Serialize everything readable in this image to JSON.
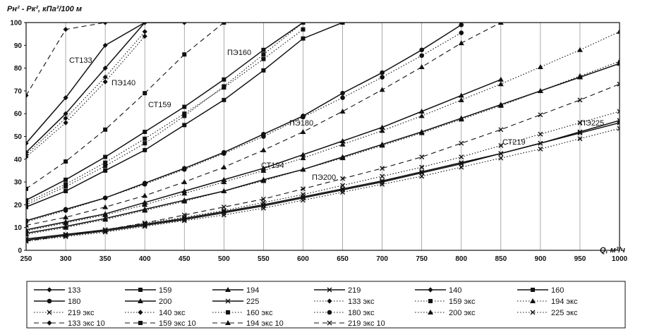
{
  "chart_data": {
    "type": "line",
    "title": "",
    "ylabel": "Рн² - Рк², кПа²/100 м",
    "xlabel": "Q, м³/ч",
    "xlim": [
      250,
      1000
    ],
    "ylim": [
      0,
      100
    ],
    "x_ticks": [
      250,
      300,
      350,
      400,
      450,
      500,
      550,
      600,
      650,
      700,
      750,
      800,
      850,
      900,
      950,
      1000
    ],
    "y_ticks": [
      0,
      10,
      20,
      30,
      40,
      50,
      60,
      70,
      80,
      90,
      100
    ],
    "grid": "vertical",
    "legend_position": "bottom",
    "annotations": [
      "СТ133",
      "ПЭ140",
      "СТ159",
      "ПЭ160",
      "ПЭ180",
      "СТ194",
      "ПЭ200",
      "СТ219",
      "ПЭ225"
    ],
    "series": [
      {
        "name": "133",
        "style": "solid",
        "marker": "diamond",
        "x": [
          250,
          300,
          350,
          400
        ],
        "y": [
          47,
          67,
          90,
          100
        ]
      },
      {
        "name": "159",
        "style": "solid",
        "marker": "square",
        "x": [
          250,
          300,
          350,
          400,
          450,
          500,
          550,
          600
        ],
        "y": [
          22,
          31,
          41,
          52,
          63,
          75,
          88,
          100
        ]
      },
      {
        "name": "194",
        "style": "solid",
        "marker": "triangle",
        "x": [
          250,
          300,
          350,
          400,
          450,
          500,
          550,
          600,
          650,
          700,
          750,
          800,
          850
        ],
        "y": [
          9,
          12.5,
          16,
          21,
          26,
          31,
          36,
          42,
          48,
          54,
          61,
          68,
          75
        ]
      },
      {
        "name": "219",
        "style": "solid",
        "marker": "x",
        "x": [
          250,
          300,
          350,
          400,
          450,
          500,
          550,
          600,
          650,
          700,
          750,
          800,
          850,
          900,
          950,
          1000
        ],
        "y": [
          4.5,
          6.5,
          8.5,
          11,
          13.5,
          16.5,
          19.5,
          23,
          26.5,
          30,
          34,
          38,
          42.5,
          47,
          52,
          57
        ]
      },
      {
        "name": "140",
        "style": "solid",
        "marker": "diamond",
        "x": [
          250,
          300,
          350,
          400,
          450
        ],
        "y": [
          43,
          60,
          80,
          100,
          100
        ]
      },
      {
        "name": "160",
        "style": "solid",
        "marker": "square",
        "x": [
          250,
          300,
          350,
          400,
          450,
          500,
          550,
          600,
          650
        ],
        "y": [
          19,
          26,
          35,
          44,
          55,
          66,
          79,
          93,
          100
        ]
      },
      {
        "name": "180",
        "style": "solid",
        "marker": "circle",
        "x": [
          250,
          300,
          350,
          400,
          450,
          500,
          550,
          600,
          650,
          700,
          750,
          800
        ],
        "y": [
          13,
          18,
          23,
          29.5,
          36,
          43,
          51,
          59,
          69,
          78,
          88,
          99
        ]
      },
      {
        "name": "200",
        "style": "solid",
        "marker": "triangle",
        "x": [
          250,
          300,
          350,
          400,
          450,
          500,
          550,
          600,
          650,
          700,
          750,
          800,
          850,
          900,
          950,
          1000
        ],
        "y": [
          7.5,
          10.5,
          14,
          18,
          22,
          26,
          31,
          35.5,
          41,
          46.5,
          52,
          58,
          64,
          70,
          76,
          82
        ]
      },
      {
        "name": "225",
        "style": "solid",
        "marker": "x",
        "x": [
          250,
          300,
          350,
          400,
          450,
          500,
          550,
          600,
          650,
          700,
          750,
          800,
          850,
          900,
          950,
          1000
        ],
        "y": [
          5,
          7,
          9,
          11.5,
          14,
          17,
          20,
          23.5,
          27,
          30.5,
          34.5,
          38.5,
          42.5,
          47,
          51.5,
          56
        ]
      },
      {
        "name": "133 экс",
        "style": "dotted",
        "marker": "diamond",
        "x": [
          250,
          300,
          350,
          400
        ],
        "y": [
          42,
          58,
          76,
          96
        ]
      },
      {
        "name": "159 экс",
        "style": "dotted",
        "marker": "square",
        "x": [
          250,
          300,
          350,
          400,
          450,
          500,
          550,
          600
        ],
        "y": [
          21,
          29,
          38.5,
          49,
          60,
          71.5,
          84,
          97
        ]
      },
      {
        "name": "194 экс",
        "style": "dotted",
        "marker": "triangle",
        "x": [
          250,
          300,
          350,
          400,
          450,
          500,
          550,
          600,
          650,
          700,
          750,
          800,
          850,
          900,
          950,
          1000
        ],
        "y": [
          8.5,
          12,
          15.5,
          20,
          25,
          30,
          35,
          40.5,
          46.5,
          52.5,
          59,
          66,
          73,
          80.5,
          88,
          96
        ]
      },
      {
        "name": "219 экс",
        "style": "dotted",
        "marker": "x",
        "x": [
          250,
          300,
          350,
          400,
          450,
          500,
          550,
          600,
          650,
          700,
          750,
          800,
          850,
          900,
          950,
          1000
        ],
        "y": [
          5,
          7,
          9,
          12,
          14.5,
          17.5,
          21,
          24.5,
          28.5,
          32.5,
          36.5,
          41,
          46,
          51,
          56,
          61
        ]
      },
      {
        "name": "140 экс",
        "style": "dotted",
        "marker": "diamond",
        "x": [
          250,
          300,
          350,
          400
        ],
        "y": [
          41,
          56,
          74,
          94
        ]
      },
      {
        "name": "160 экс",
        "style": "dotted",
        "marker": "square",
        "x": [
          250,
          300,
          350,
          400,
          450,
          500,
          550,
          600
        ],
        "y": [
          20,
          28,
          37,
          47,
          59,
          72,
          86,
          100
        ]
      },
      {
        "name": "180 экс",
        "style": "dotted",
        "marker": "circle",
        "x": [
          250,
          300,
          350,
          400,
          450,
          500,
          550,
          600,
          650,
          700,
          750,
          800
        ],
        "y": [
          12.5,
          17.5,
          23,
          29,
          35.5,
          42.5,
          50,
          58.5,
          67,
          76,
          85.5,
          95.5
        ]
      },
      {
        "name": "200 экс",
        "style": "dotted",
        "marker": "triangle",
        "x": [
          250,
          300,
          350,
          400,
          450,
          500,
          550,
          600,
          650,
          700,
          750,
          800,
          850,
          900,
          950,
          1000
        ],
        "y": [
          7,
          10,
          13.5,
          17.5,
          21.5,
          26,
          30.5,
          35.5,
          40.5,
          46,
          51.5,
          57.5,
          63.5,
          70,
          76.5,
          83
        ]
      },
      {
        "name": "225 экс",
        "style": "dotted",
        "marker": "x",
        "x": [
          250,
          300,
          350,
          400,
          450,
          500,
          550,
          600,
          650,
          700,
          750,
          800,
          850,
          900,
          950,
          1000
        ],
        "y": [
          4,
          6,
          8,
          10.5,
          13,
          15.5,
          18.5,
          22,
          25.5,
          29,
          32.5,
          36.5,
          40.5,
          44.5,
          49,
          53.5
        ]
      },
      {
        "name": "133 экс 10",
        "style": "dashed",
        "marker": "diamond",
        "x": [
          250,
          300,
          350
        ],
        "y": [
          68,
          97,
          100
        ]
      },
      {
        "name": "159 экс 10",
        "style": "dashed",
        "marker": "square",
        "x": [
          250,
          300,
          350,
          400,
          450,
          500
        ],
        "y": [
          27,
          39,
          53,
          69,
          86,
          100
        ]
      },
      {
        "name": "194 экс 10",
        "style": "dashed",
        "marker": "triangle",
        "x": [
          250,
          300,
          350,
          400,
          450,
          500,
          550,
          600,
          650,
          700,
          750,
          800,
          850
        ],
        "y": [
          11,
          14.5,
          19,
          24,
          30,
          36.5,
          44,
          52,
          61,
          70.5,
          80.5,
          91,
          100
        ]
      },
      {
        "name": "219 экс 10",
        "style": "dashed",
        "marker": "x",
        "x": [
          250,
          300,
          350,
          400,
          450,
          500,
          550,
          600,
          650,
          700,
          750,
          800,
          850,
          900,
          950,
          1000
        ],
        "y": [
          4,
          6.5,
          9,
          12,
          15.5,
          19,
          22.5,
          27,
          31.5,
          36,
          41,
          47,
          53,
          59.5,
          66,
          73
        ]
      }
    ]
  }
}
